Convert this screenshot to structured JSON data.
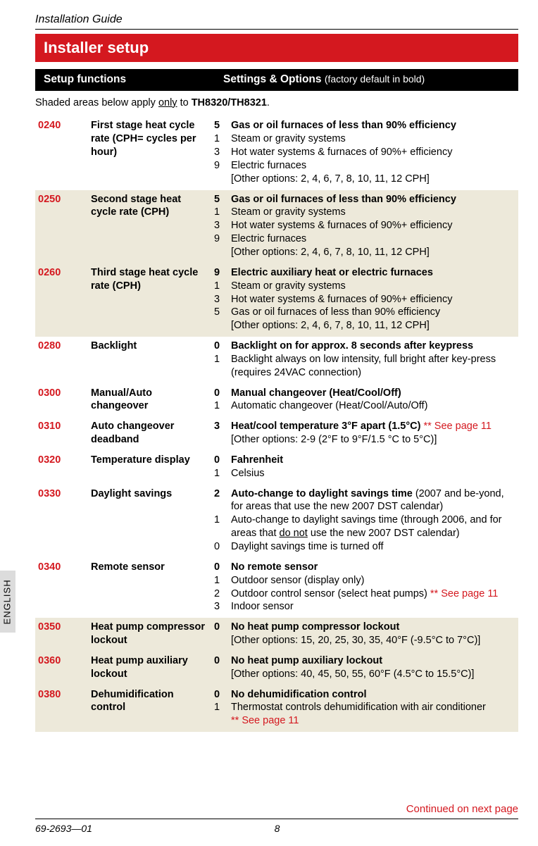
{
  "header": {
    "guide_title": "Installation Guide",
    "banner": "Installer setup",
    "col_functions": "Setup functions",
    "col_settings": "Settings & Options",
    "col_settings_note": "(factory default in bold)",
    "shaded_note_pre": "Shaded areas below apply ",
    "shaded_note_u": "only",
    "shaded_note_mid": " to ",
    "shaded_note_b": "TH8320/TH8321",
    "shaded_note_post": "."
  },
  "side_tab": "ENGLISH",
  "continued": "Continued on next page",
  "footer": {
    "doc_no": "69-2693—01",
    "page": "8"
  },
  "rows": [
    {
      "code": "0240",
      "shaded": false,
      "fn": "First stage heat cycle rate (CPH= cycles per hour)",
      "opts": [
        {
          "n": "5",
          "b": true,
          "t": "Gas or oil furnaces of less than 90% efficiency"
        },
        {
          "n": "1",
          "b": false,
          "t": "Steam or gravity systems"
        },
        {
          "n": "3",
          "b": false,
          "t": "Hot water systems & furnaces of 90%+ efficiency"
        },
        {
          "n": "9",
          "b": false,
          "t": "Electric furnaces"
        }
      ],
      "bracket": "[Other options: 2, 4, 6, 7, 8, 10, 11, 12 CPH]"
    },
    {
      "code": "0250",
      "shaded": true,
      "fn": "Second stage heat cycle rate (CPH)",
      "opts": [
        {
          "n": "5",
          "b": true,
          "t": "Gas or oil furnaces of less than 90% efficiency"
        },
        {
          "n": "1",
          "b": false,
          "t": "Steam or gravity systems"
        },
        {
          "n": "3",
          "b": false,
          "t": "Hot water systems & furnaces of 90%+ efficiency"
        },
        {
          "n": "9",
          "b": false,
          "t": "Electric furnaces"
        }
      ],
      "bracket": "[Other options: 2, 4, 6, 7, 8, 10, 11, 12 CPH]"
    },
    {
      "code": "0260",
      "shaded": true,
      "fn": "Third stage heat cycle rate (CPH)",
      "opts": [
        {
          "n": "9",
          "b": true,
          "t": "Electric auxiliary heat or electric furnaces"
        },
        {
          "n": "1",
          "b": false,
          "t": "Steam or gravity systems"
        },
        {
          "n": "3",
          "b": false,
          "t": "Hot water systems & furnaces of 90%+ efficiency"
        },
        {
          "n": "5",
          "b": false,
          "t": "Gas or oil furnaces of less than 90% efficiency"
        }
      ],
      "bracket": "[Other options: 2, 4, 6, 7, 8, 10, 11, 12 CPH]"
    },
    {
      "code": "0280",
      "shaded": false,
      "fn": "Backlight",
      "opts": [
        {
          "n": "0",
          "b": true,
          "t": "Backlight on for approx. 8 seconds after keypress"
        },
        {
          "n": "1",
          "b": false,
          "t": "Backlight always on low intensity, full bright after key-press (requires 24VAC connection)"
        }
      ]
    },
    {
      "code": "0300",
      "shaded": false,
      "fn": "Manual/Auto changeover",
      "opts": [
        {
          "n": "0",
          "b": true,
          "t": "Manual changeover (Heat/Cool/Off)"
        },
        {
          "n": "1",
          "b": false,
          "t": "Automatic changeover (Heat/Cool/Auto/Off)"
        }
      ]
    },
    {
      "code": "0310",
      "shaded": false,
      "fn": "Auto changeover deadband",
      "opts": [
        {
          "n": "3",
          "b": true,
          "t": "Heat/cool temperature 3°F apart (1.5°C)",
          "red": " ** See page 11"
        }
      ],
      "bracket": "[Other options: 2-9 (2°F to 9°F/1.5 °C to 5°C)]"
    },
    {
      "code": "0320",
      "shaded": false,
      "fn": "Temperature display",
      "opts": [
        {
          "n": "0",
          "b": true,
          "t": "Fahrenheit"
        },
        {
          "n": "1",
          "b": false,
          "t": "Celsius"
        }
      ]
    },
    {
      "code": "0330",
      "shaded": false,
      "fn": "Daylight savings",
      "opts": [
        {
          "n": "2",
          "b": true,
          "t": "Auto-change to daylight savings time",
          "tail": " (2007 and be-yond, for areas that use the new 2007 DST calendar)"
        },
        {
          "n": "1",
          "b": false,
          "pre": "Auto-change to daylight savings time (through 2006, and for areas that ",
          "u": "do not",
          "post": " use the new 2007 DST calendar)"
        },
        {
          "n": "0",
          "b": false,
          "t": "Daylight savings time is turned off"
        }
      ]
    },
    {
      "code": "0340",
      "shaded": false,
      "fn": "Remote sensor",
      "opts": [
        {
          "n": "0",
          "b": true,
          "t": "No remote sensor"
        },
        {
          "n": "1",
          "b": false,
          "t": "Outdoor sensor (display only)"
        },
        {
          "n": "2",
          "b": false,
          "t": "Outdoor control sensor (select heat pumps)",
          "red": "   ** See page 11"
        },
        {
          "n": "3",
          "b": false,
          "t": "Indoor sensor"
        }
      ]
    },
    {
      "code": "0350",
      "shaded": true,
      "fn": "Heat pump compressor lockout",
      "opts": [
        {
          "n": "0",
          "b": true,
          "t": "No heat pump compressor lockout"
        }
      ],
      "bracket": "[Other options: 15, 20, 25, 30, 35, 40°F (-9.5°C to 7°C)]"
    },
    {
      "code": "0360",
      "shaded": true,
      "fn": "Heat pump auxiliary lockout",
      "opts": [
        {
          "n": "0",
          "b": true,
          "t": "No heat pump auxiliary lockout"
        }
      ],
      "bracket": "[Other options: 40, 45, 50, 55, 60°F (4.5°C to 15.5°C)]"
    },
    {
      "code": "0380",
      "shaded": true,
      "fn": "Dehumidification control",
      "opts": [
        {
          "n": "0",
          "b": true,
          "t": "No dehumidification control"
        },
        {
          "n": "1",
          "b": false,
          "t": "Thermostat controls dehumidification with air conditioner"
        }
      ],
      "redline": "** See page 11"
    }
  ]
}
